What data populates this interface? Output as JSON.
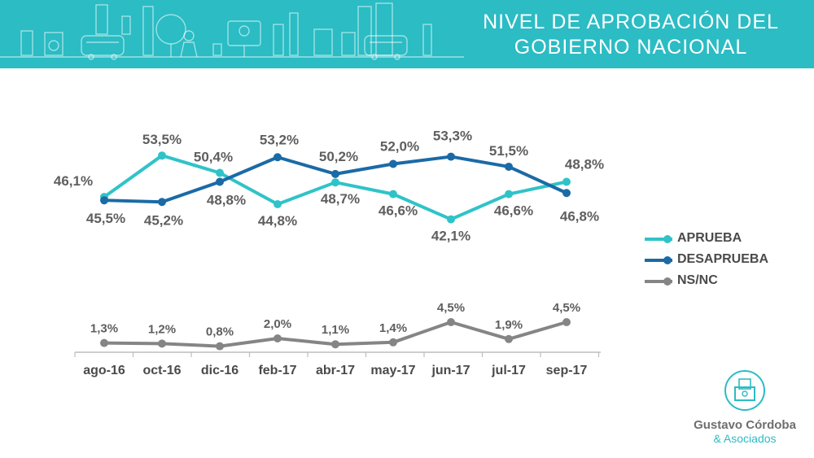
{
  "header": {
    "title_line1": "NIVEL DE APROBACIÓN DEL",
    "title_line2": "GOBIERNO NACIONAL"
  },
  "colors": {
    "aprueba": "#2fc3c8",
    "desaprueba": "#1b6aa6",
    "nsnc": "#858585",
    "banner": "#2bbcc4",
    "label": "#5e5e5e"
  },
  "chart_data": {
    "type": "line",
    "title": "NIVEL DE APROBACIÓN DEL GOBIERNO NACIONAL",
    "categories": [
      "ago-16",
      "oct-16",
      "dic-16",
      "feb-17",
      "abr-17",
      "may-17",
      "jun-17",
      "jul-17",
      "sep-17"
    ],
    "series": [
      {
        "key": "aprueba",
        "name": "APRUEBA",
        "values": [
          46.1,
          53.5,
          50.4,
          44.8,
          48.7,
          46.6,
          42.1,
          46.6,
          48.8
        ],
        "labels": [
          "46,1%",
          "53,5%",
          "50,4%",
          "44,8%",
          "48,7%",
          "46,6%",
          "42,1%",
          "46,6%",
          "48,8%"
        ]
      },
      {
        "key": "desaprueba",
        "name": "DESAPRUEBA",
        "values": [
          45.5,
          45.2,
          48.8,
          53.2,
          50.2,
          52.0,
          53.3,
          51.5,
          46.8
        ],
        "labels": [
          "45,5%",
          "45,2%",
          "48,8%",
          "53,2%",
          "50,2%",
          "52,0%",
          "53,3%",
          "51,5%",
          "46,8%"
        ]
      },
      {
        "key": "nsnc",
        "name": "NS/NC",
        "values": [
          1.3,
          1.2,
          0.8,
          2.0,
          1.1,
          1.4,
          4.5,
          1.9,
          4.5
        ],
        "labels": [
          "1,3%",
          "1,2%",
          "0,8%",
          "2,0%",
          "1,1%",
          "1,4%",
          "4,5%",
          "1,9%",
          "4,5%"
        ]
      }
    ],
    "ylim_main": [
      40,
      56
    ],
    "ylim_nsnc": [
      0,
      6
    ],
    "legend": "right"
  },
  "brand": {
    "name": "Gustavo Córdoba",
    "sub": "& Asociados"
  }
}
